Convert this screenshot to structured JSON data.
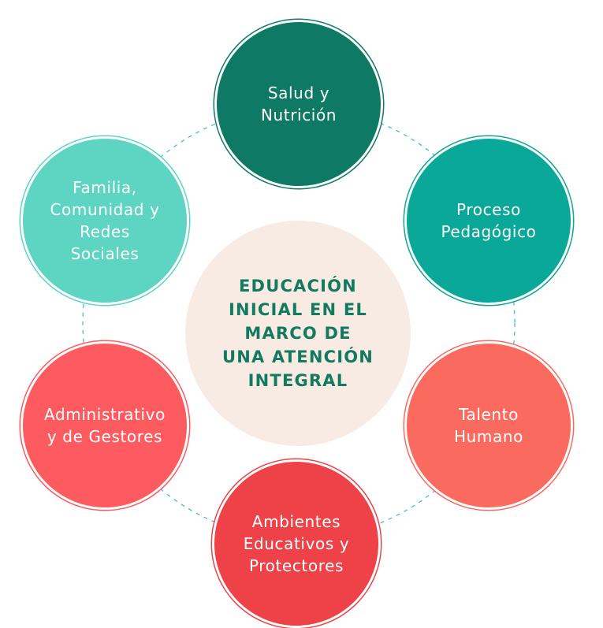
{
  "diagram": {
    "center": {
      "label": "EDUCACIÓN\nINICIAL EN EL\nMARCO DE\nUNA ATENCIÓN\nINTEGRAL",
      "fill": "#f7ebe4",
      "text_color": "#137a60"
    },
    "nodes": [
      {
        "label": "Salud y\nNutrición",
        "fill": "#0e7a66"
      },
      {
        "label": "Proceso\nPedagógico",
        "fill": "#0aa899"
      },
      {
        "label": "Talento\nHumano",
        "fill": "#fb6a5f"
      },
      {
        "label": "Ambientes\nEducativos y\nProtectores",
        "fill": "#ee4248"
      },
      {
        "label": "Administrativo\ny de Gestores",
        "fill": "#fd5b5f"
      },
      {
        "label": "Familia,\nComunidad y\nRedes\nSociales",
        "fill": "#5ed5c3"
      }
    ],
    "connector": {
      "style": "dashed",
      "color": "#39b3cf"
    }
  }
}
